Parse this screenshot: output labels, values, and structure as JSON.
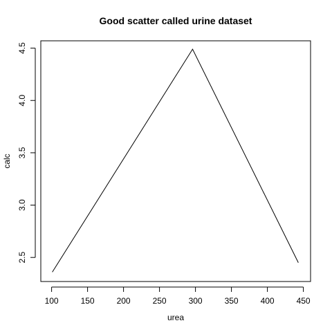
{
  "chart_data": {
    "type": "line",
    "title": "Good scatter called urine dataset",
    "xlabel": "urea",
    "ylabel": "calc",
    "x": [
      101,
      296,
      443
    ],
    "series": [
      {
        "values": [
          2.36,
          4.49,
          2.45
        ],
        "color": "#000000"
      }
    ],
    "xlim": [
      85,
      460
    ],
    "ylim": [
      2.27,
      4.57
    ],
    "xticks": [
      100,
      150,
      200,
      250,
      300,
      350,
      400,
      450
    ],
    "yticks": [
      2.5,
      3.0,
      3.5,
      4.0,
      4.5
    ],
    "xtick_labels": [
      "100",
      "150",
      "200",
      "250",
      "300",
      "350",
      "400",
      "450"
    ],
    "ytick_labels": [
      "2.5",
      "3.0",
      "3.5",
      "4.0",
      "4.5"
    ],
    "grid": false,
    "legend": "none"
  }
}
